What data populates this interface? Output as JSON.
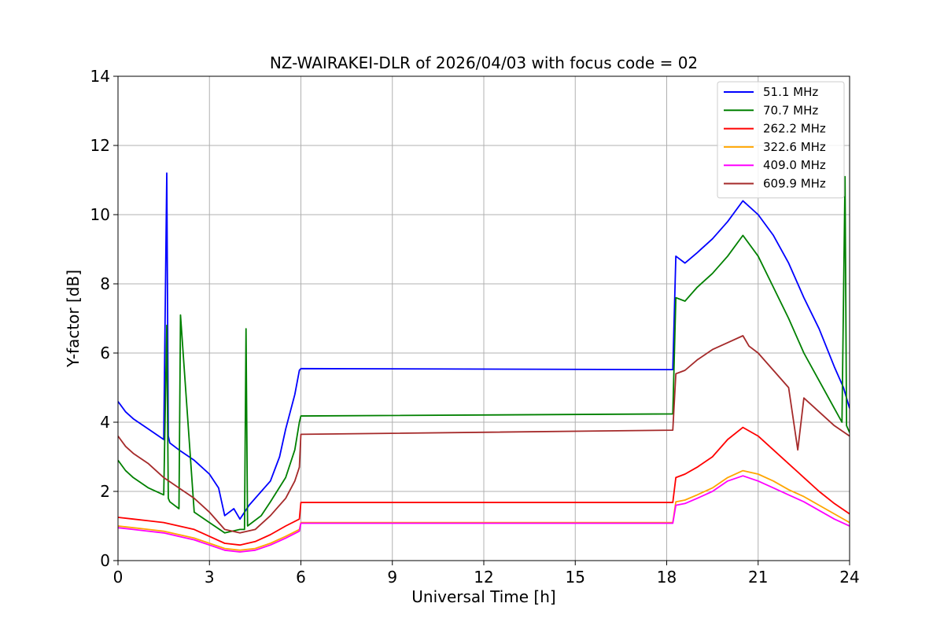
{
  "chart_data": {
    "type": "line",
    "title": "NZ-WAIRAKEI-DLR of 2026/04/03 with focus code = 02",
    "xlabel": "Universal Time [h]",
    "ylabel": "Y-factor [dB]",
    "xlim": [
      0,
      24
    ],
    "ylim": [
      0,
      14
    ],
    "xticks": [
      0,
      3,
      6,
      9,
      12,
      15,
      18,
      21,
      24
    ],
    "xtick_labels": [
      "0",
      "3",
      "6",
      "9",
      "12",
      "15",
      "18",
      "21",
      "24"
    ],
    "yticks": [
      0,
      2,
      4,
      6,
      8,
      10,
      12,
      14
    ],
    "ytick_labels": [
      "0",
      "2",
      "4",
      "6",
      "8",
      "10",
      "12",
      "14"
    ],
    "grid": true,
    "legend_position": "top-right",
    "series": [
      {
        "name": " 51.1 MHz",
        "color": "#0000ff",
        "x": [
          0,
          0.25,
          0.5,
          1.0,
          1.5,
          1.6,
          1.65,
          1.7,
          2.0,
          2.5,
          3.0,
          3.3,
          3.5,
          3.8,
          4.0,
          4.3,
          4.7,
          5.0,
          5.3,
          5.5,
          5.8,
          5.95,
          6.0,
          18.2,
          18.3,
          18.6,
          19.0,
          19.5,
          20.0,
          20.5,
          21.0,
          21.5,
          22.0,
          22.5,
          23.0,
          23.5,
          23.8,
          24.0
        ],
        "y": [
          4.6,
          4.3,
          4.1,
          3.8,
          3.5,
          11.2,
          3.6,
          3.4,
          3.2,
          2.9,
          2.5,
          2.1,
          1.3,
          1.5,
          1.2,
          1.6,
          2.0,
          2.3,
          3.0,
          3.8,
          4.8,
          5.5,
          5.55,
          5.52,
          8.8,
          8.6,
          8.9,
          9.3,
          9.8,
          10.4,
          10.0,
          9.4,
          8.6,
          7.6,
          6.7,
          5.6,
          5.0,
          4.4
        ]
      },
      {
        "name": " 70.7 MHz",
        "color": "#008000",
        "x": [
          0,
          0.25,
          0.5,
          1.0,
          1.5,
          1.6,
          1.65,
          1.7,
          2.0,
          2.05,
          2.5,
          3.0,
          3.5,
          4.0,
          4.15,
          4.2,
          4.25,
          4.7,
          5.0,
          5.5,
          5.8,
          5.95,
          6.0,
          18.2,
          18.3,
          18.6,
          19.0,
          19.5,
          20.0,
          20.5,
          21.0,
          21.5,
          22.0,
          22.5,
          23.0,
          23.5,
          23.75,
          23.85,
          23.9,
          24.0
        ],
        "y": [
          2.9,
          2.6,
          2.4,
          2.1,
          1.9,
          6.8,
          1.8,
          1.7,
          1.5,
          7.1,
          1.4,
          1.1,
          0.8,
          0.9,
          0.9,
          6.7,
          1.0,
          1.3,
          1.7,
          2.4,
          3.2,
          4.0,
          4.18,
          4.24,
          7.6,
          7.5,
          7.9,
          8.3,
          8.8,
          9.4,
          8.8,
          7.9,
          7.0,
          6.0,
          5.2,
          4.4,
          4.0,
          11.1,
          3.9,
          3.7
        ]
      },
      {
        "name": " 262.2 MHz",
        "color": "#ff0000",
        "x": [
          0,
          0.5,
          1.0,
          1.5,
          2.0,
          2.5,
          3.0,
          3.5,
          4.0,
          4.5,
          5.0,
          5.5,
          5.95,
          6.0,
          18.2,
          18.3,
          18.6,
          19.0,
          19.5,
          20.0,
          20.5,
          21.0,
          21.5,
          22.0,
          22.5,
          23.0,
          23.5,
          24.0
        ],
        "y": [
          1.25,
          1.2,
          1.15,
          1.1,
          1.0,
          0.9,
          0.7,
          0.5,
          0.45,
          0.55,
          0.75,
          1.0,
          1.2,
          1.68,
          1.68,
          2.4,
          2.5,
          2.7,
          3.0,
          3.5,
          3.85,
          3.6,
          3.2,
          2.8,
          2.4,
          2.0,
          1.65,
          1.35
        ]
      },
      {
        "name": " 322.6 MHz",
        "color": "#ffa500",
        "x": [
          0,
          0.5,
          1.0,
          1.5,
          2.0,
          2.5,
          3.0,
          3.5,
          4.0,
          4.5,
          5.0,
          5.5,
          5.95,
          6.0,
          18.2,
          18.3,
          18.6,
          19.0,
          19.5,
          20.0,
          20.5,
          21.0,
          21.5,
          22.0,
          22.5,
          23.0,
          23.5,
          24.0
        ],
        "y": [
          1.0,
          0.95,
          0.9,
          0.85,
          0.75,
          0.65,
          0.5,
          0.35,
          0.3,
          0.35,
          0.5,
          0.7,
          0.9,
          1.1,
          1.1,
          1.7,
          1.75,
          1.9,
          2.1,
          2.4,
          2.6,
          2.5,
          2.3,
          2.05,
          1.85,
          1.6,
          1.35,
          1.1
        ]
      },
      {
        "name": " 409.0 MHz",
        "color": "#ff00ff",
        "x": [
          0,
          0.5,
          1.0,
          1.5,
          2.0,
          2.5,
          3.0,
          3.5,
          4.0,
          4.5,
          5.0,
          5.5,
          5.95,
          6.0,
          18.2,
          18.3,
          18.6,
          19.0,
          19.5,
          20.0,
          20.5,
          21.0,
          21.5,
          22.0,
          22.5,
          23.0,
          23.5,
          24.0
        ],
        "y": [
          0.95,
          0.9,
          0.85,
          0.8,
          0.7,
          0.6,
          0.45,
          0.3,
          0.25,
          0.3,
          0.45,
          0.65,
          0.85,
          1.08,
          1.08,
          1.6,
          1.65,
          1.8,
          2.0,
          2.3,
          2.45,
          2.3,
          2.1,
          1.9,
          1.7,
          1.45,
          1.2,
          1.0
        ]
      },
      {
        "name": " 609.9 MHz",
        "color": "#a52a2a",
        "x": [
          0,
          0.25,
          0.5,
          1.0,
          1.5,
          2.0,
          2.5,
          3.0,
          3.5,
          4.0,
          4.5,
          5.0,
          5.5,
          5.8,
          5.95,
          6.0,
          18.2,
          18.3,
          18.6,
          19.0,
          19.5,
          20.0,
          20.5,
          20.7,
          21.0,
          21.5,
          22.0,
          22.3,
          22.5,
          23.0,
          23.5,
          24.0
        ],
        "y": [
          3.6,
          3.3,
          3.1,
          2.8,
          2.4,
          2.1,
          1.8,
          1.4,
          0.9,
          0.8,
          0.9,
          1.3,
          1.8,
          2.3,
          2.7,
          3.65,
          3.77,
          5.4,
          5.5,
          5.8,
          6.1,
          6.3,
          6.5,
          6.2,
          6.0,
          5.5,
          5.0,
          3.2,
          4.7,
          4.3,
          3.9,
          3.6
        ]
      }
    ]
  }
}
